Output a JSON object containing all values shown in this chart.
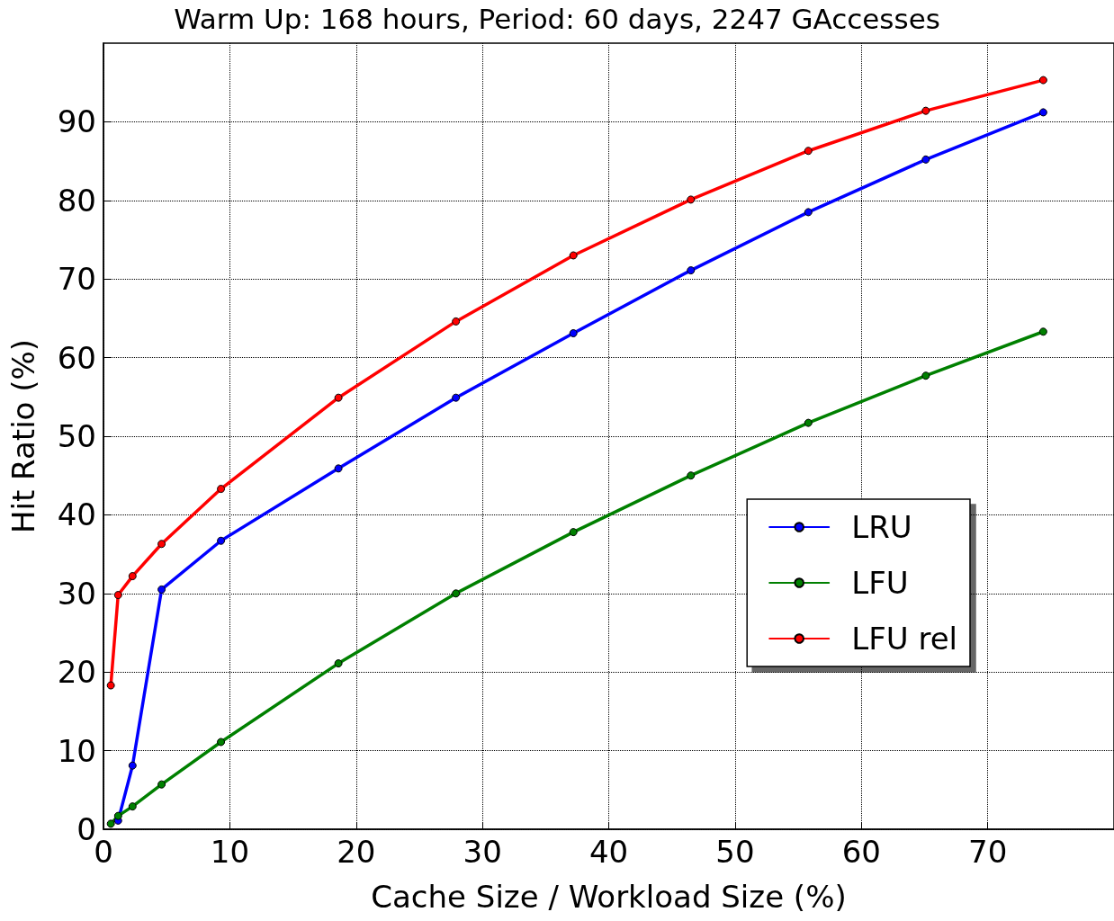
{
  "chart_data": {
    "type": "line",
    "title": "Warm Up: 168 hours, Period: 60 days, 2247 GAccesses",
    "xlabel": "Cache Size / Workload Size (%)",
    "ylabel": "Hit Ratio (%)",
    "x": [
      0.58,
      1.16,
      2.3,
      4.6,
      9.3,
      18.6,
      27.9,
      37.2,
      46.5,
      55.8,
      65.1,
      74.4
    ],
    "series": [
      {
        "name": "LRU",
        "color": "#0000ff",
        "values": [
          null,
          1.1,
          8.1,
          30.5,
          36.7,
          45.9,
          54.9,
          63.1,
          71.1,
          78.5,
          85.2,
          91.2
        ]
      },
      {
        "name": "LFU",
        "color": "#008000",
        "values": [
          0.7,
          1.7,
          2.9,
          5.7,
          11.1,
          21.1,
          30.0,
          37.8,
          45.0,
          51.7,
          57.7,
          63.3
        ]
      },
      {
        "name": "LFU rel",
        "color": "#ff0000",
        "values": [
          18.3,
          29.8,
          32.2,
          36.3,
          43.3,
          54.9,
          64.6,
          73.0,
          80.1,
          86.3,
          91.4,
          95.3
        ]
      }
    ],
    "xlim": [
      0,
      80
    ],
    "xticks": [
      0,
      10,
      20,
      30,
      40,
      50,
      60,
      70
    ],
    "ylim": [
      0,
      100
    ],
    "yticks": [
      0,
      10,
      20,
      30,
      40,
      50,
      60,
      70,
      80,
      90
    ],
    "grid": true,
    "legend": "right",
    "marker": "circle",
    "line_style": "solid"
  }
}
